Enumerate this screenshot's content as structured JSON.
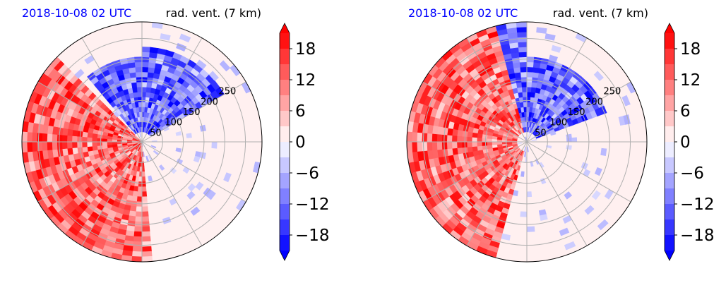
{
  "chart_data": [
    {
      "type": "heatmap",
      "projection": "polar",
      "title_left": "2018-10-08 02 UTC",
      "title_right": "rad. vent. (7 km)",
      "radial_ticks": [
        50,
        100,
        150,
        200,
        250
      ],
      "radial_max": 290,
      "radial_gridlines": true,
      "azimuth_gridline_step_deg": 30,
      "colorbar": {
        "ticks": [
          "18",
          "12",
          "6",
          "0",
          "−6",
          "−12",
          "−18"
        ],
        "tick_values": [
          18,
          12,
          6,
          0,
          -6,
          -12,
          -18
        ],
        "range": [
          -21,
          21
        ],
        "extend": "both",
        "colormap": "bwr"
      },
      "features": [
        {
          "sign": "positive",
          "description": "outbound",
          "az_start": 175,
          "az_end": 315,
          "r_start": 0,
          "r_end": 290
        },
        {
          "sign": "negative",
          "description": "inbound",
          "az_start": 320,
          "az_end": 360,
          "r_start": 30,
          "r_end": 200
        },
        {
          "sign": "negative",
          "description": "inbound",
          "az_start": 0,
          "az_end": 60,
          "r_start": 20,
          "r_end": 230
        }
      ]
    },
    {
      "type": "heatmap",
      "projection": "polar",
      "title_left": "2018-10-08 02 UTC",
      "title_right": "rad. vent. (7 km)",
      "radial_ticks": [
        50,
        100,
        150,
        200,
        250
      ],
      "radial_max": 290,
      "radial_gridlines": true,
      "azimuth_gridline_step_deg": 30,
      "colorbar": {
        "ticks": [
          "18",
          "12",
          "6",
          "0",
          "−6",
          "−12",
          "−18"
        ],
        "tick_values": [
          18,
          12,
          6,
          0,
          -6,
          -12,
          -18
        ],
        "range": [
          -21,
          21
        ],
        "extend": "both",
        "colormap": "bwr"
      },
      "features": [
        {
          "sign": "positive",
          "description": "outbound",
          "az_start": 195,
          "az_end": 345,
          "r_start": 20,
          "r_end": 290
        },
        {
          "sign": "negative",
          "description": "inbound",
          "az_start": 345,
          "az_end": 360,
          "r_start": 20,
          "r_end": 290
        },
        {
          "sign": "negative",
          "description": "inbound",
          "az_start": 0,
          "az_end": 70,
          "r_start": 20,
          "r_end": 200
        }
      ]
    }
  ]
}
